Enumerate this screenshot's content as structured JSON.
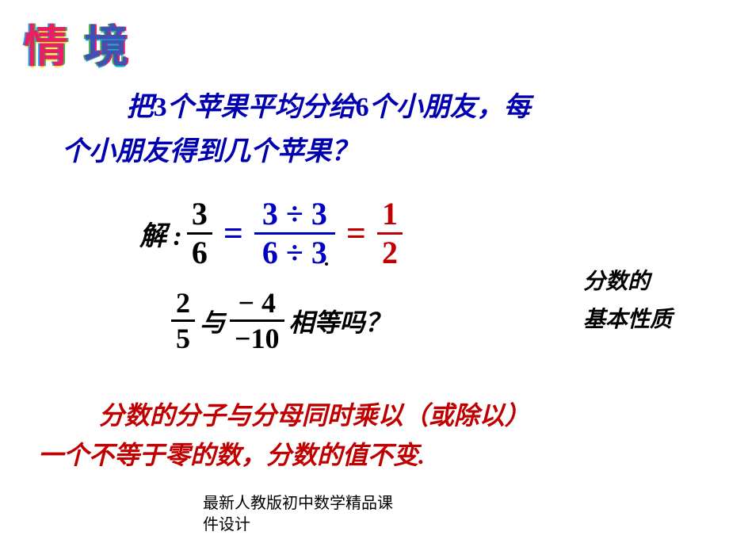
{
  "title": {
    "c1": "情",
    "c2": "境"
  },
  "question": {
    "line1_a": "把",
    "line1_n1": "3",
    "line1_b": "个苹果平均分给",
    "line1_n2": "6",
    "line1_c": "个小朋友，每",
    "line2": "个小朋友得到几个苹果？"
  },
  "equation": {
    "label": "解 :",
    "f1_num": "3",
    "f1_den": "6",
    "eq1": "=",
    "f2_num": "3 ÷ 3",
    "f2_den": "6 ÷ 3",
    "eq2": "=",
    "f3_num": "1",
    "f3_den": "2"
  },
  "side": {
    "l1": "分数的",
    "l2": "基本性质"
  },
  "eq2": {
    "f1_num": "2",
    "f1_den": "5",
    "mid": "与",
    "f2_num": "− 4",
    "f2_den": "−10",
    "tail": "相等吗？"
  },
  "rule": {
    "l1": "分数的分子与分母同时乘以（或除以）",
    "l2": "一个不等于零的数，分数的值不变."
  },
  "footer": {
    "l1": "最新人教版初中数学精品课",
    "l2": "件设计"
  },
  "colors": {
    "blue": "#0000b0",
    "darkblue": "#0000c0",
    "red": "#c00000",
    "black": "#000000",
    "bg": "#ffffff"
  },
  "typography": {
    "question_fontsize": 34,
    "eq_fontsize": 40,
    "side_fontsize": 28,
    "rule_fontsize": 32,
    "footer_fontsize": 20,
    "title_fontsize": 56
  }
}
